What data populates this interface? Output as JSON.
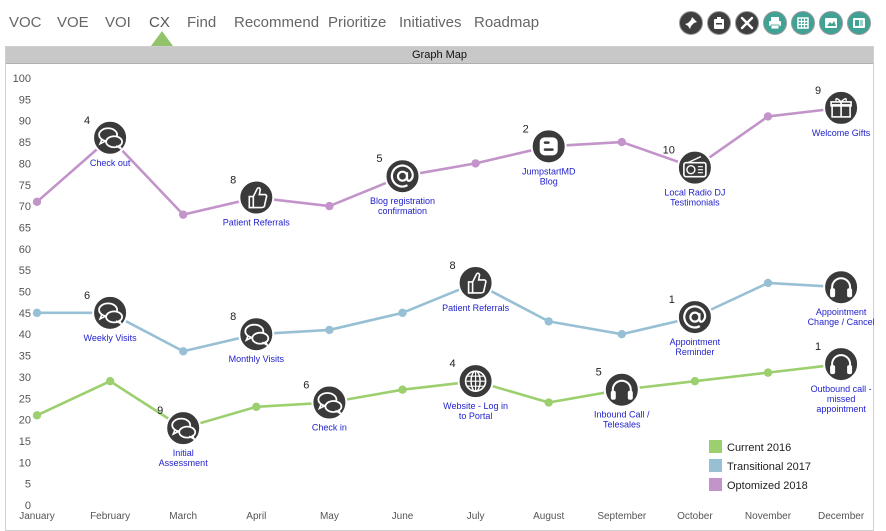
{
  "nav": {
    "items": [
      {
        "id": "voc",
        "label": "VOC"
      },
      {
        "id": "voe",
        "label": "VOE"
      },
      {
        "id": "voi",
        "label": "VOI"
      },
      {
        "id": "cx",
        "label": "CX"
      },
      {
        "id": "find",
        "label": "Find"
      },
      {
        "id": "recommend",
        "label": "Recommend"
      },
      {
        "id": "prioritize",
        "label": "Prioritize"
      },
      {
        "id": "initiatives",
        "label": "Initiatives"
      },
      {
        "id": "roadmap",
        "label": "Roadmap"
      }
    ],
    "active": "cx"
  },
  "toolbar": {
    "buttons": [
      {
        "name": "pin-icon"
      },
      {
        "name": "clipboard-icon"
      },
      {
        "name": "tools-icon"
      },
      {
        "name": "print-icon"
      },
      {
        "name": "grid-icon"
      },
      {
        "name": "export-image-icon"
      },
      {
        "name": "export-slides-icon"
      }
    ]
  },
  "panel": {
    "title": "Graph Map"
  },
  "chart_data": {
    "type": "line",
    "title": "",
    "xlabel": "",
    "ylabel": "",
    "ylim": [
      0,
      100
    ],
    "yticks": [
      0,
      5,
      10,
      15,
      20,
      25,
      30,
      35,
      40,
      45,
      50,
      55,
      60,
      65,
      70,
      75,
      80,
      85,
      90,
      95,
      100
    ],
    "grid": false,
    "legend_position": "bottom-right",
    "categories": [
      "January",
      "February",
      "March",
      "April",
      "May",
      "June",
      "July",
      "August",
      "September",
      "October",
      "November",
      "December"
    ],
    "series": [
      {
        "name": "Current 2016",
        "color": "#9ccf6e",
        "values": [
          21,
          29,
          18,
          23,
          24,
          27,
          29,
          24,
          27,
          29,
          31,
          33
        ]
      },
      {
        "name": "Transitional 2017",
        "color": "#98c0d4",
        "values": [
          45,
          45,
          36,
          40,
          41,
          45,
          52,
          43,
          40,
          44,
          52,
          51
        ]
      },
      {
        "name": "Optomized 2018",
        "color": "#c294c9",
        "values": [
          71,
          86,
          68,
          72,
          70,
          77,
          80,
          84,
          85,
          79,
          91,
          93
        ]
      }
    ],
    "annotations": [
      {
        "series": 0,
        "index": 2,
        "count": "9",
        "label": [
          "Initial",
          "Assessment"
        ],
        "icon": "chat-bubbles-icon"
      },
      {
        "series": 0,
        "index": 4,
        "count": "6",
        "label": [
          "Check in"
        ],
        "icon": "chat-bubbles-icon"
      },
      {
        "series": 0,
        "index": 6,
        "count": "4",
        "label": [
          "Website - Log in",
          "to Portal"
        ],
        "icon": "globe-icon"
      },
      {
        "series": 0,
        "index": 8,
        "count": "5",
        "label": [
          "Inbound Call /",
          "Telesales"
        ],
        "icon": "headphones-icon"
      },
      {
        "series": 0,
        "index": 11,
        "count": "1",
        "label": [
          "Outbound call -",
          "missed",
          "appointment"
        ],
        "icon": "headphones-icon"
      },
      {
        "series": 1,
        "index": 1,
        "count": "6",
        "label": [
          "Weekly Visits"
        ],
        "icon": "chat-bubbles-icon"
      },
      {
        "series": 1,
        "index": 3,
        "count": "8",
        "label": [
          "Monthly Visits"
        ],
        "icon": "chat-bubbles-icon"
      },
      {
        "series": 1,
        "index": 6,
        "count": "8",
        "label": [
          "Patient Referrals"
        ],
        "icon": "thumbs-up-icon"
      },
      {
        "series": 1,
        "index": 9,
        "count": "1",
        "label": [
          "Appointment",
          "Reminder"
        ],
        "icon": "at-sign-icon"
      },
      {
        "series": 1,
        "index": 11,
        "count": "",
        "label": [
          "Appointment",
          "Change / Cancel"
        ],
        "icon": "headphones-icon"
      },
      {
        "series": 2,
        "index": 1,
        "count": "4",
        "label": [
          "Check out"
        ],
        "icon": "chat-bubbles-icon"
      },
      {
        "series": 2,
        "index": 3,
        "count": "8",
        "label": [
          "Patient Referrals"
        ],
        "icon": "thumbs-up-icon"
      },
      {
        "series": 2,
        "index": 5,
        "count": "5",
        "label": [
          "Blog registration",
          "confirmation"
        ],
        "icon": "at-sign-icon"
      },
      {
        "series": 2,
        "index": 7,
        "count": "2",
        "label": [
          "JumpstartMD",
          "Blog"
        ],
        "icon": "blogger-icon"
      },
      {
        "series": 2,
        "index": 9,
        "count": "10",
        "label": [
          "Local Radio DJ",
          "Testimonials"
        ],
        "icon": "radio-icon"
      },
      {
        "series": 2,
        "index": 11,
        "count": "9",
        "label": [
          "Welcome Gifts"
        ],
        "icon": "gift-icon"
      }
    ]
  }
}
